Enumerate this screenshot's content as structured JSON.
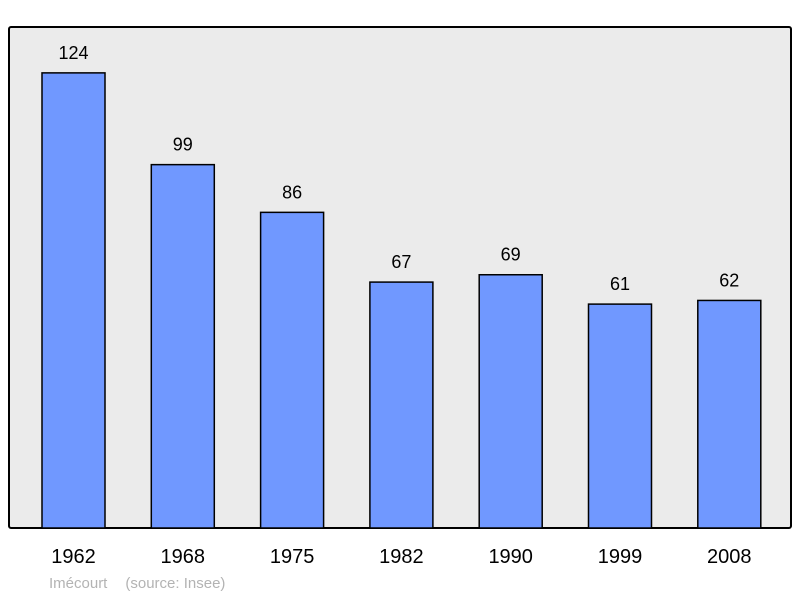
{
  "chart_data": {
    "type": "bar",
    "categories": [
      "1962",
      "1968",
      "1975",
      "1982",
      "1990",
      "1999",
      "2008"
    ],
    "values": [
      124,
      99,
      86,
      67,
      69,
      61,
      62
    ],
    "data_labels": [
      "124",
      "99",
      "86",
      "67",
      "69",
      "61",
      "62"
    ],
    "title": "",
    "xlabel": "",
    "ylabel": "",
    "ylim": [
      0,
      136.5
    ],
    "grid": false,
    "bar_color": "#7098ff",
    "plot_background": "#ebebeb"
  },
  "footer": {
    "place": "Imécourt",
    "source": "(source: Insee)"
  }
}
